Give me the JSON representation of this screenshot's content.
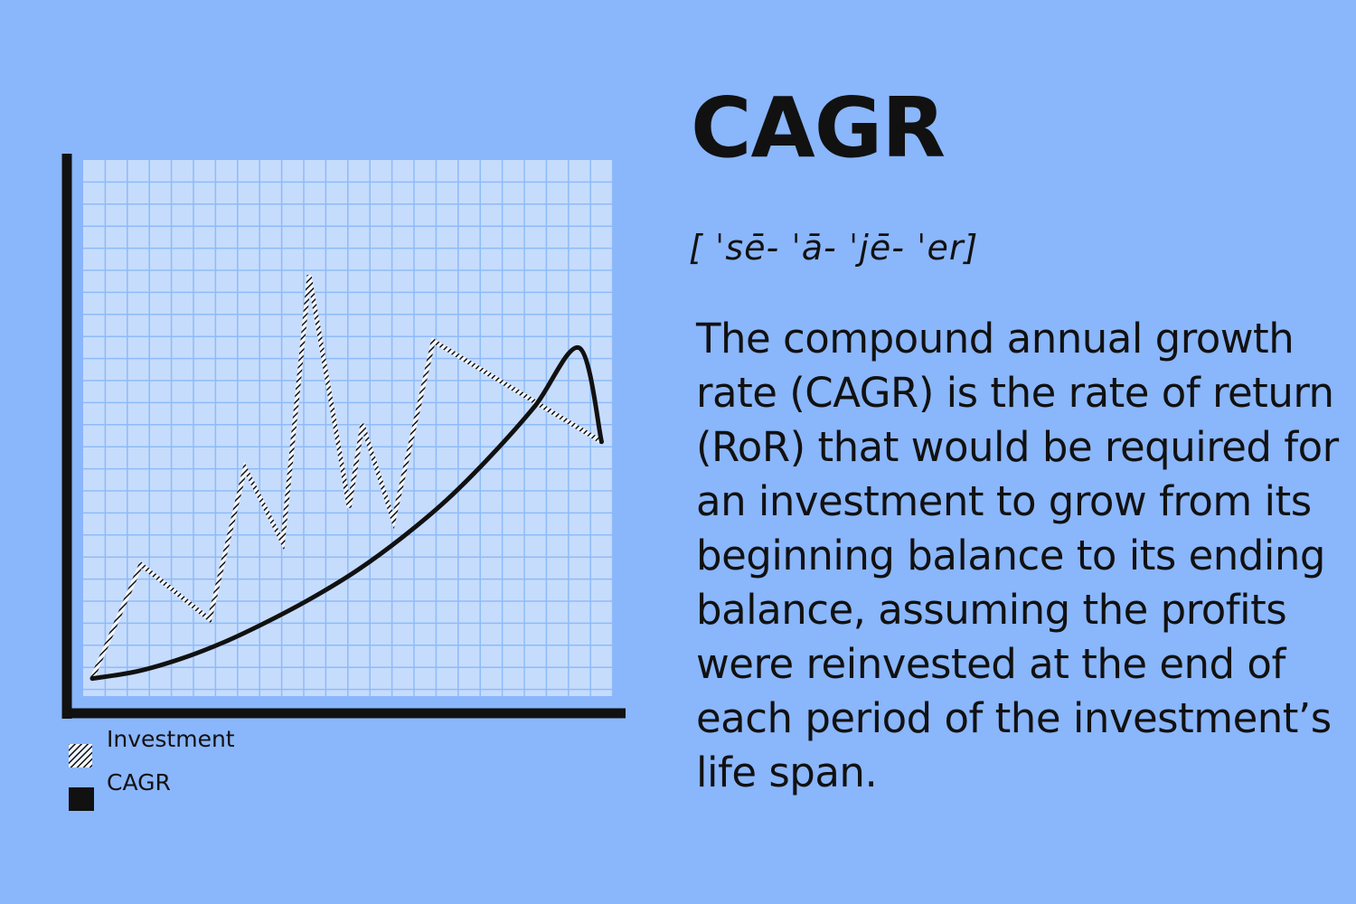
{
  "header": {
    "title": "CAGR",
    "pronunciation": "[ ˈsē- ˈā- ˈjē- ˈer]"
  },
  "definition_lines": [
    "The compound annual growth",
    "rate (CAGR) is the rate of return",
    "(RoR) that would be required for",
    "an investment to grow from its",
    "beginning balance to its ending",
    "balance, assuming the profits",
    "were reinvested at the end of",
    "each period of the investment’s",
    "life span."
  ],
  "legend": {
    "investment_label": "Investment",
    "cagr_label": "CAGR"
  },
  "colors": {
    "background": "#8ab6fb",
    "plot_area": "#c6dcfd",
    "grid": "#8ebbf8",
    "ink": "#111111"
  },
  "chart_data": {
    "type": "line",
    "title": "",
    "xlabel": "",
    "ylabel": "",
    "xlim": [
      0,
      11.7
    ],
    "ylim": [
      0,
      12
    ],
    "grid": true,
    "legend_position": "bottom-left",
    "series": [
      {
        "name": "Investment",
        "style": "hatched",
        "points": [
          [
            0,
            0.4
          ],
          [
            1.1,
            3.0
          ],
          [
            2.65,
            1.75
          ],
          [
            3.45,
            5.2
          ],
          [
            4.3,
            3.5
          ],
          [
            4.9,
            9.6
          ],
          [
            5.8,
            4.3
          ],
          [
            6.1,
            6.2
          ],
          [
            6.8,
            4.0
          ],
          [
            7.7,
            8.1
          ],
          [
            11.5,
            5.8
          ]
        ]
      },
      {
        "name": "CAGR",
        "style": "solid",
        "points": [
          [
            0,
            0.4
          ],
          [
            1,
            0.56
          ],
          [
            2,
            0.85
          ],
          [
            3,
            1.24
          ],
          [
            4,
            1.72
          ],
          [
            5,
            2.26
          ],
          [
            6,
            2.88
          ],
          [
            7,
            3.62
          ],
          [
            8,
            4.47
          ],
          [
            9,
            5.48
          ],
          [
            10,
            6.62
          ],
          [
            11,
            7.94
          ],
          [
            11.5,
            5.8
          ]
        ]
      }
    ]
  }
}
